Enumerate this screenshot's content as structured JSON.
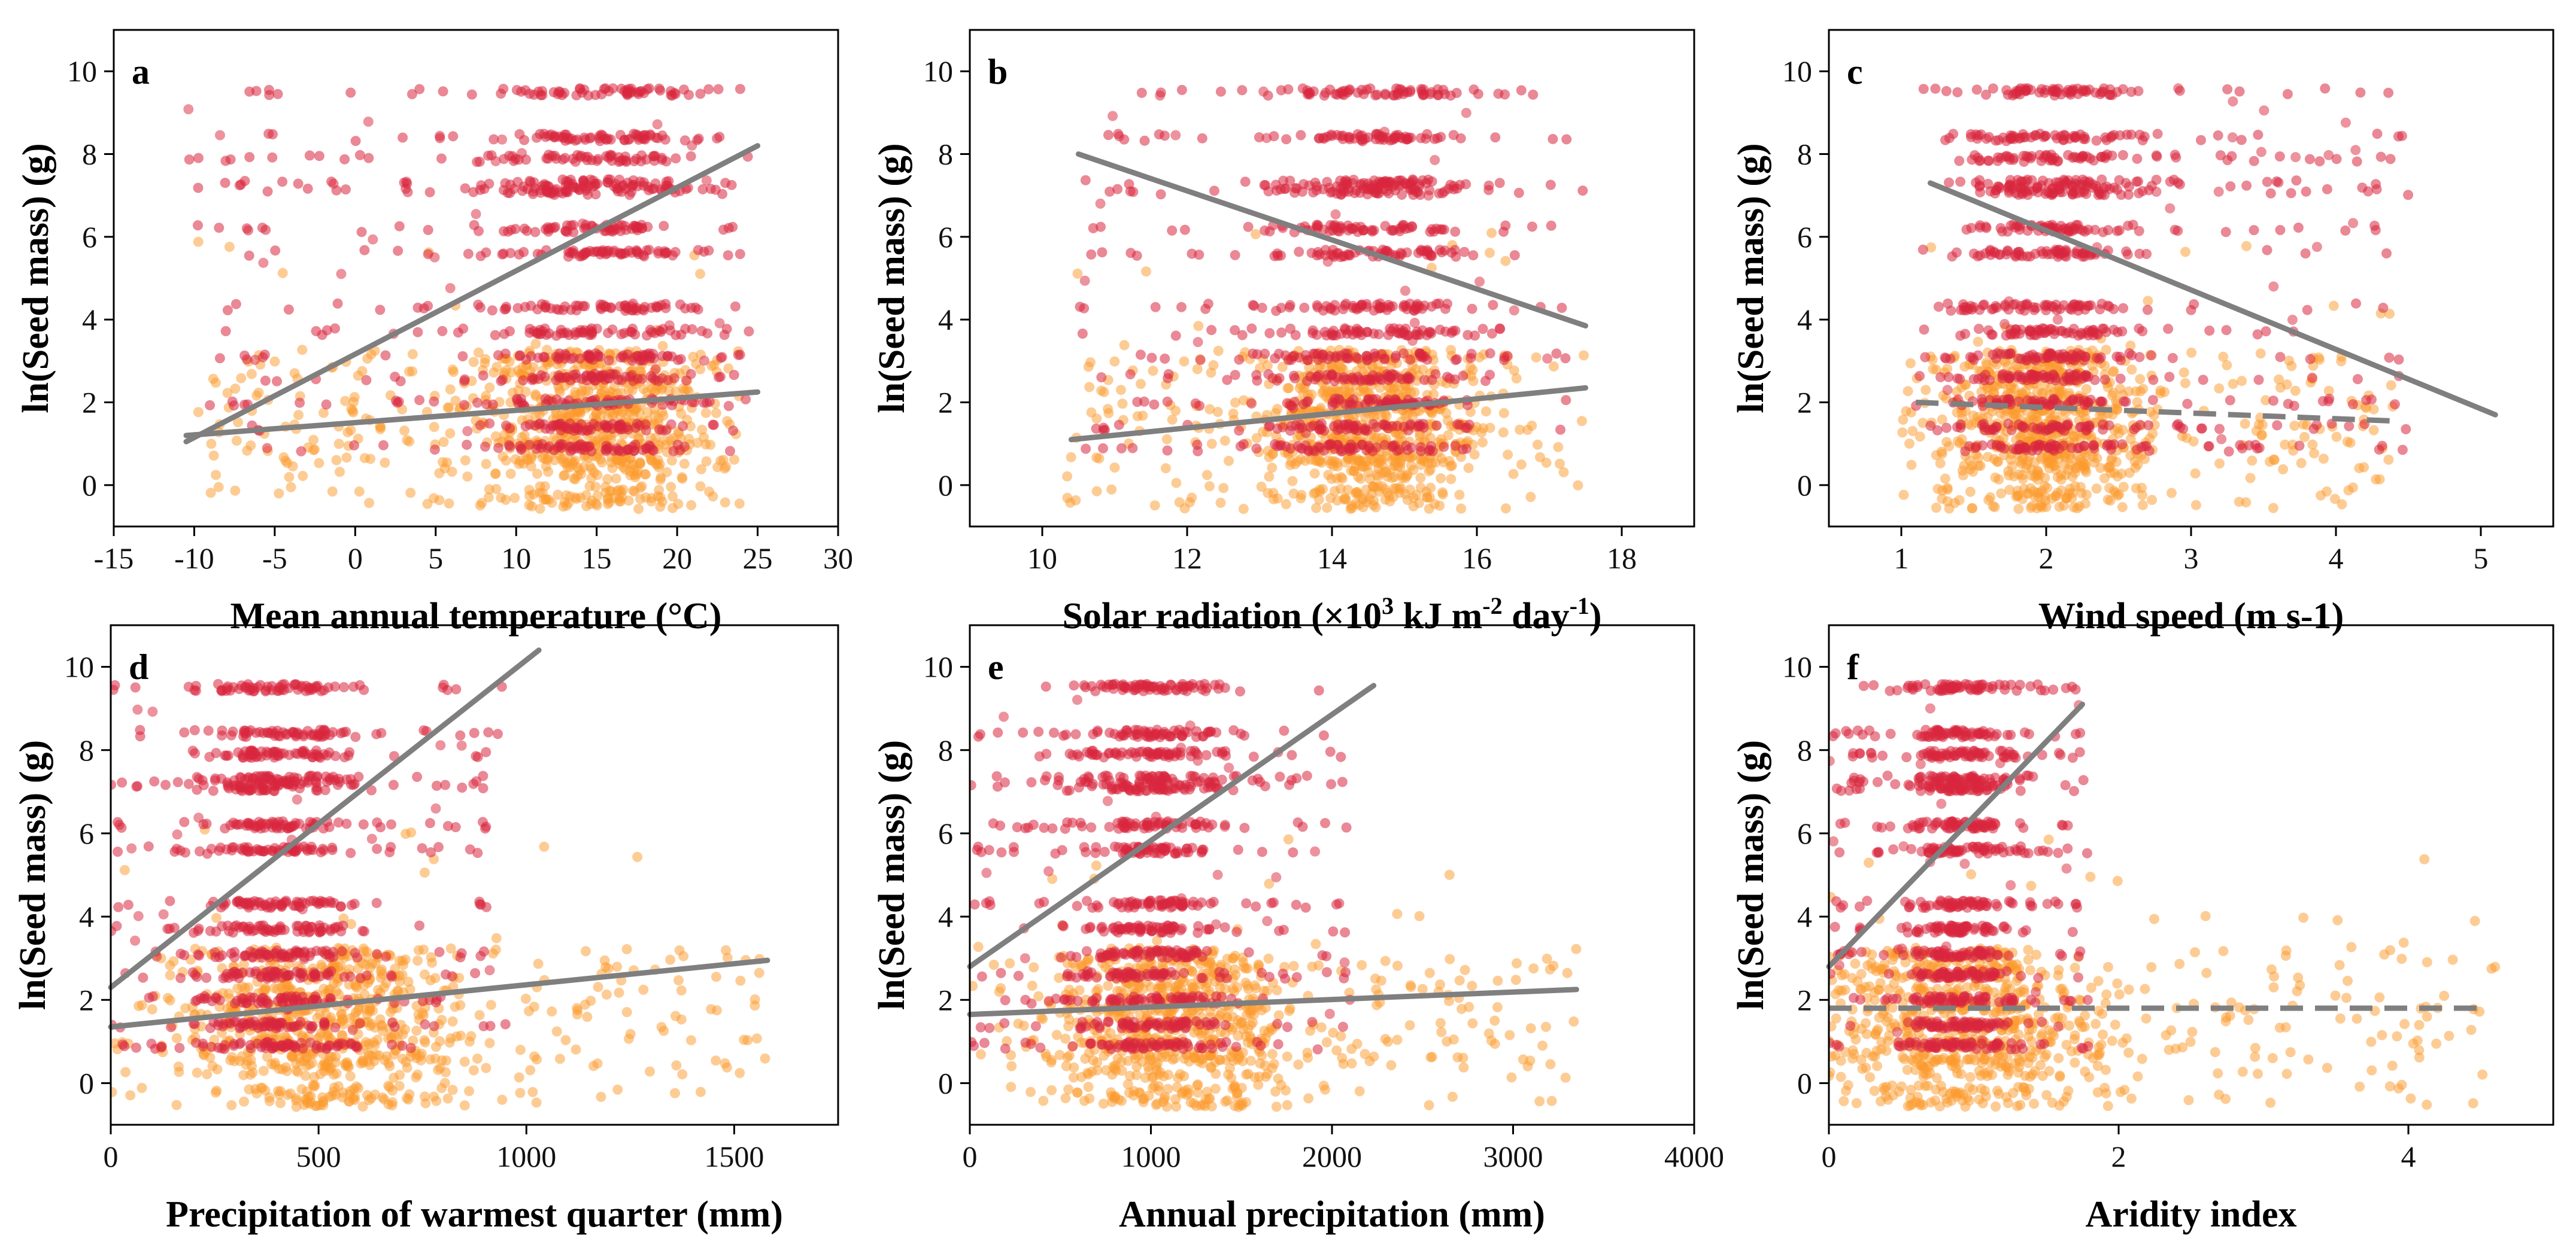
{
  "colors": {
    "red_group": "#d9273e",
    "orange_group": "#fb9a2c",
    "trend_line": "#7f7f7f",
    "axis": "#000000"
  },
  "chart_data": [
    {
      "panel": "a",
      "type": "scatter",
      "xlabel": "Mean annual temperature (°C)",
      "xlabel_parts": [
        "Mean annual temperature (",
        "°",
        "C)"
      ],
      "ylabel": "ln(Seed mass) (g)",
      "xlim": [
        -15,
        30
      ],
      "ylim": [
        -1,
        11
      ],
      "xticks": [
        -15,
        -10,
        -5,
        0,
        5,
        10,
        15,
        20,
        25,
        30
      ],
      "yticks": [
        0,
        2,
        4,
        6,
        8,
        10
      ],
      "series": [
        {
          "name": "red",
          "color": "#d9273e",
          "x_range": [
            -10.5,
            24.5
          ],
          "x_center": 15,
          "levels": [
            9.5,
            8.4,
            7.9,
            7.3,
            7.1,
            6.2,
            5.6,
            4.3,
            3.7,
            3.1,
            2.6,
            2.0,
            1.4,
            0.9
          ]
        },
        {
          "name": "orange",
          "color": "#fb9a2c",
          "x_range": [
            -10,
            24.5
          ],
          "x_center": 15,
          "levels": [
            3.0,
            2.5,
            2.0,
            1.6,
            1.2,
            0.8,
            0.4,
            -0.3
          ]
        }
      ],
      "trend_lines": [
        {
          "x": [
            -10.5,
            25
          ],
          "y": [
            1.05,
            8.2
          ],
          "style": "solid"
        },
        {
          "x": [
            -10.5,
            25
          ],
          "y": [
            1.2,
            2.25
          ],
          "style": "solid"
        }
      ]
    },
    {
      "panel": "b",
      "type": "scatter",
      "xlabel": "Solar radiation (×10³ kJ m⁻² day⁻¹)",
      "xlabel_parts": [
        "Solar radiation (×10",
        "3",
        " kJ m",
        "-2",
        " day",
        "-1",
        ")"
      ],
      "ylabel": "ln(Seed mass) (g)",
      "xlim": [
        9,
        19
      ],
      "ylim": [
        -1,
        11
      ],
      "xticks": [
        10,
        12,
        14,
        16,
        18
      ],
      "yticks": [
        0,
        2,
        4,
        6,
        8,
        10
      ],
      "series": [
        {
          "name": "red",
          "color": "#d9273e",
          "x_range": [
            10.5,
            17.5
          ],
          "x_center": 14.5,
          "levels": [
            9.5,
            8.4,
            7.3,
            7.1,
            6.2,
            5.6,
            4.3,
            3.7,
            3.1,
            2.6,
            2.0,
            1.4,
            0.9
          ]
        },
        {
          "name": "orange",
          "color": "#fb9a2c",
          "x_range": [
            10.3,
            17.5
          ],
          "x_center": 14.5,
          "levels": [
            3.0,
            2.5,
            2.0,
            1.6,
            1.2,
            0.8,
            0.4,
            -0.3
          ]
        }
      ],
      "trend_lines": [
        {
          "x": [
            10.5,
            17.5
          ],
          "y": [
            8.0,
            3.85
          ],
          "style": "solid"
        },
        {
          "x": [
            10.4,
            17.5
          ],
          "y": [
            1.1,
            2.35
          ],
          "style": "solid"
        }
      ]
    },
    {
      "panel": "c",
      "type": "scatter",
      "xlabel": "Wind speed (m s⁻¹)",
      "xlabel_parts": [
        "Wind speed (m s",
        "-1",
        ")"
      ],
      "ylabel": "ln(Seed mass) (g)",
      "xlim": [
        0.5,
        5.5
      ],
      "ylim": [
        -1,
        11
      ],
      "xticks": [
        1,
        2,
        3,
        4,
        5
      ],
      "yticks": [
        0,
        2,
        4,
        6,
        8,
        10
      ],
      "series": [
        {
          "name": "red",
          "color": "#d9273e",
          "x_range": [
            1.1,
            4.5
          ],
          "x_center": 2.0,
          "levels": [
            9.5,
            8.4,
            7.9,
            7.3,
            7.1,
            6.2,
            5.6,
            4.3,
            3.7,
            3.1,
            2.6,
            2.0,
            1.4,
            0.9
          ]
        },
        {
          "name": "orange",
          "color": "#fb9a2c",
          "x_range": [
            1.0,
            4.4
          ],
          "x_center": 2.0,
          "levels": [
            3.0,
            2.5,
            2.0,
            1.6,
            1.2,
            0.8,
            0.4,
            -0.3
          ]
        }
      ],
      "trend_lines": [
        {
          "x": [
            1.2,
            5.1
          ],
          "y": [
            7.3,
            1.7
          ],
          "style": "solid"
        },
        {
          "x": [
            1.1,
            4.4
          ],
          "y": [
            2.0,
            1.55
          ],
          "style": "dashed"
        }
      ]
    },
    {
      "panel": "d",
      "type": "scatter",
      "xlabel": "Precipitation of warmest quarter (mm)",
      "xlabel_parts": [
        "Precipitation of warmest quarter (mm)"
      ],
      "ylabel": "ln(Seed mass) (g)",
      "xlim": [
        0,
        1750
      ],
      "ylim": [
        -1,
        11
      ],
      "xticks": [
        0,
        500,
        1000,
        1500
      ],
      "yticks": [
        0,
        2,
        4,
        6,
        8,
        10
      ],
      "series": [
        {
          "name": "red",
          "color": "#d9273e",
          "x_range": [
            0,
            950
          ],
          "x_center": 400,
          "levels": [
            9.5,
            8.4,
            7.9,
            7.3,
            7.1,
            6.2,
            5.6,
            4.3,
            3.7,
            3.1,
            2.6,
            2.0,
            1.4,
            0.9
          ]
        },
        {
          "name": "orange",
          "color": "#fb9a2c",
          "x_range": [
            0,
            1580
          ],
          "x_center": 500,
          "levels": [
            3.0,
            2.5,
            2.0,
            1.6,
            1.2,
            0.8,
            0.4,
            -0.3
          ]
        }
      ],
      "trend_lines": [
        {
          "x": [
            0,
            1030
          ],
          "y": [
            2.3,
            10.4
          ],
          "style": "solid"
        },
        {
          "x": [
            0,
            1580
          ],
          "y": [
            1.35,
            2.95
          ],
          "style": "solid"
        }
      ]
    },
    {
      "panel": "e",
      "type": "scatter",
      "xlabel": "Annual precipitation (mm)",
      "xlabel_parts": [
        "Annual precipitation (mm)"
      ],
      "ylabel": "ln(Seed mass) (g)",
      "xlim": [
        0,
        4000
      ],
      "ylim": [
        -1,
        11
      ],
      "xticks": [
        0,
        1000,
        2000,
        3000,
        4000
      ],
      "yticks": [
        0,
        2,
        4,
        6,
        8,
        10
      ],
      "series": [
        {
          "name": "red",
          "color": "#d9273e",
          "x_range": [
            0,
            2100
          ],
          "x_center": 1000,
          "levels": [
            9.5,
            8.4,
            7.9,
            7.3,
            7.1,
            6.2,
            5.6,
            4.3,
            3.7,
            3.1,
            2.6,
            2.0,
            1.4,
            0.9
          ]
        },
        {
          "name": "orange",
          "color": "#fb9a2c",
          "x_range": [
            0,
            3350
          ],
          "x_center": 1100,
          "levels": [
            3.0,
            2.5,
            2.0,
            1.6,
            1.2,
            0.8,
            0.4,
            -0.3
          ]
        }
      ],
      "trend_lines": [
        {
          "x": [
            0,
            2230
          ],
          "y": [
            2.8,
            9.55
          ],
          "style": "solid"
        },
        {
          "x": [
            0,
            3350
          ],
          "y": [
            1.65,
            2.25
          ],
          "style": "solid"
        }
      ]
    },
    {
      "panel": "f",
      "type": "scatter",
      "xlabel": "Aridity index",
      "xlabel_parts": [
        "Aridity index"
      ],
      "ylabel": "ln(Seed mass) (g)",
      "xlim": [
        0,
        5
      ],
      "ylim": [
        -1,
        11
      ],
      "xticks": [
        0,
        2,
        4
      ],
      "yticks": [
        0,
        2,
        4,
        6,
        8,
        10
      ],
      "series": [
        {
          "name": "red",
          "color": "#d9273e",
          "x_range": [
            0,
            1.8
          ],
          "x_center": 0.9,
          "levels": [
            9.5,
            8.4,
            7.9,
            7.3,
            7.1,
            6.2,
            5.6,
            4.3,
            3.7,
            3.1,
            2.6,
            2.0,
            1.4,
            0.9
          ]
        },
        {
          "name": "orange",
          "color": "#fb9a2c",
          "x_range": [
            0,
            4.6
          ],
          "x_center": 0.9,
          "levels": [
            3.0,
            2.5,
            2.0,
            1.6,
            1.2,
            0.8,
            0.4,
            -0.3
          ]
        }
      ],
      "trend_lines": [
        {
          "x": [
            0,
            1.75
          ],
          "y": [
            2.8,
            9.1
          ],
          "style": "solid"
        },
        {
          "x": [
            0,
            4.5
          ],
          "y": [
            1.8,
            1.8
          ],
          "style": "dashed"
        }
      ]
    }
  ]
}
